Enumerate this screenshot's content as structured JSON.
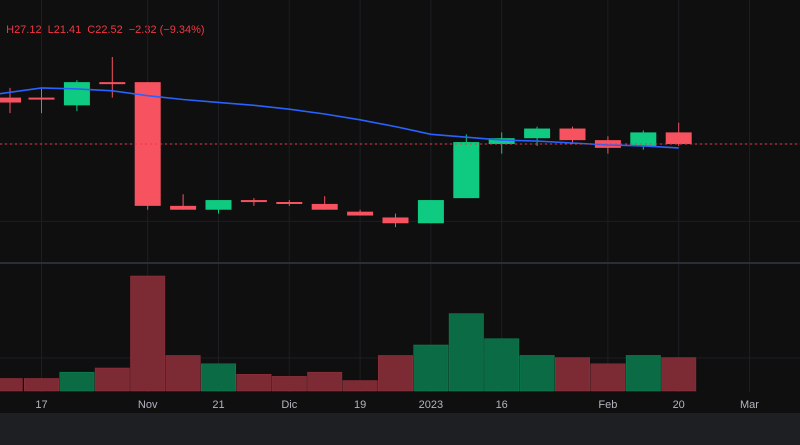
{
  "ohlc_readout": {
    "high": "H27.12",
    "low": "L21.41",
    "close": "C22.52",
    "change": "−2.32 (−9.34%)"
  },
  "colors": {
    "up": "#089981",
    "up_bright": "#0ecb81",
    "down": "#f23645",
    "down_candle": "#f7525f",
    "ma": "#2962ff"
  },
  "chart_data": {
    "type": "candlestick",
    "x_ticks": [
      "17",
      "Nov",
      "21",
      "Dic",
      "19",
      "2023",
      "16",
      "Feb",
      "20",
      "Mar",
      "20"
    ],
    "x_tick_index": [
      0,
      3,
      5,
      7,
      9,
      11,
      13,
      16,
      18,
      20,
      22
    ],
    "candles": [
      {
        "o": 26.4,
        "h": 26.9,
        "l": 25.6,
        "c": 26.3
      },
      {
        "o": 26.0,
        "h": 27.3,
        "l": 25.7,
        "c": 27.2
      },
      {
        "o": 27.2,
        "h": 28.5,
        "l": 26.4,
        "c": 27.1
      },
      {
        "o": 27.2,
        "h": 27.2,
        "l": 20.6,
        "c": 20.8
      },
      {
        "o": 20.8,
        "h": 21.4,
        "l": 20.6,
        "c": 20.6
      },
      {
        "o": 20.6,
        "h": 21.1,
        "l": 20.4,
        "c": 21.1
      },
      {
        "o": 21.1,
        "h": 21.2,
        "l": 20.8,
        "c": 21.0
      },
      {
        "o": 21.0,
        "h": 21.1,
        "l": 20.8,
        "c": 20.9
      },
      {
        "o": 20.9,
        "h": 21.3,
        "l": 20.6,
        "c": 20.6
      },
      {
        "o": 20.5,
        "h": 20.6,
        "l": 20.3,
        "c": 20.3
      },
      {
        "o": 20.2,
        "h": 20.4,
        "l": 19.7,
        "c": 19.9
      },
      {
        "o": 19.9,
        "h": 21.1,
        "l": 19.9,
        "c": 21.1
      },
      {
        "o": 21.2,
        "h": 24.5,
        "l": 21.2,
        "c": 24.1
      },
      {
        "o": 24.0,
        "h": 24.6,
        "l": 23.5,
        "c": 24.3
      },
      {
        "o": 24.3,
        "h": 24.9,
        "l": 23.9,
        "c": 24.8
      },
      {
        "o": 24.8,
        "h": 24.9,
        "l": 24.0,
        "c": 24.2
      },
      {
        "o": 24.2,
        "h": 24.4,
        "l": 23.5,
        "c": 23.8
      },
      {
        "o": 23.9,
        "h": 24.7,
        "l": 23.7,
        "c": 24.6
      },
      {
        "o": 24.6,
        "h": 25.1,
        "l": 23.9,
        "c": 24.0
      }
    ],
    "moving_average": [
      26.9,
      26.85,
      26.75,
      26.5,
      26.3,
      26.15,
      26.0,
      25.8,
      25.55,
      25.25,
      24.9,
      24.5,
      24.35,
      24.2,
      24.15,
      24.05,
      23.95,
      23.9,
      23.8
    ],
    "ma_start_value": 26.6,
    "last_price": 24.0,
    "volume": [
      6,
      9,
      11,
      55,
      17,
      13,
      8,
      7,
      9,
      5,
      17,
      22,
      37,
      25,
      17,
      16,
      13,
      17,
      16
    ],
    "volume_prev": 6
  }
}
